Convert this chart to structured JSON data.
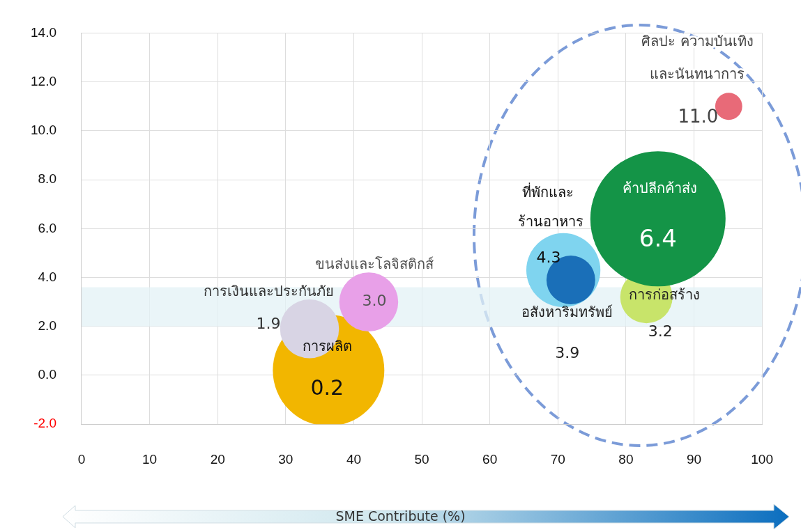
{
  "chart_data": {
    "type": "bubble",
    "xlabel": "SME Contribute (%)",
    "xlim": [
      0,
      100
    ],
    "xticks": [
      0,
      10,
      20,
      30,
      40,
      50,
      60,
      70,
      80,
      90,
      100
    ],
    "ylim": [
      -2,
      14
    ],
    "yticks": [
      {
        "value": -2,
        "label": "-2.0"
      },
      {
        "value": 0,
        "label": "0.0"
      },
      {
        "value": 2,
        "label": "2.0"
      },
      {
        "value": 4,
        "label": "4.0"
      },
      {
        "value": 6,
        "label": "6.0"
      },
      {
        "value": 8,
        "label": "8.0"
      },
      {
        "value": 10,
        "label": "10.0"
      },
      {
        "value": 12,
        "label": "12.0"
      },
      {
        "value": 14,
        "label": "14.0"
      }
    ],
    "grid": true,
    "bands": [
      {
        "axis": "y",
        "from": 2,
        "to": 3.6,
        "color": "#e3f1f5"
      }
    ],
    "series": [
      {
        "name": "การผลิต",
        "color": "#f2b600",
        "x": [
          36.3
        ],
        "values": [
          0.2
        ],
        "sizes": [
          0.68
        ],
        "value_labels": [
          "0.2"
        ]
      },
      {
        "name": "การเงินและประกันภัย",
        "color": "#d8d4e4",
        "x": [
          33.5
        ],
        "values": [
          1.9
        ],
        "sizes": [
          0.19
        ],
        "value_labels": [
          "1.9"
        ]
      },
      {
        "name": "ขนส่งและโลจิสติกส์",
        "color": "#e8a0e8",
        "x": [
          42.2
        ],
        "values": [
          3.0
        ],
        "sizes": [
          0.19
        ],
        "value_labels": [
          "3.0"
        ]
      },
      {
        "name": "ที่พักและร้านอาหาร",
        "color": "#7fd4ef",
        "x": [
          70.8
        ],
        "values": [
          4.3
        ],
        "sizes": [
          0.3
        ],
        "value_labels": [
          "4.3"
        ]
      },
      {
        "name": "อสังหาริมทรัพย์",
        "color": "#1a6fb8",
        "x": [
          71.9
        ],
        "values": [
          3.9
        ],
        "sizes": [
          0.13
        ],
        "value_labels": [
          "3.9"
        ]
      },
      {
        "name": "การก่อสร้าง",
        "color": "#c8e46a",
        "x": [
          83
        ],
        "values": [
          3.2
        ],
        "sizes": [
          0.15
        ],
        "value_labels": [
          "3.2"
        ]
      },
      {
        "name": "ค้าปลีกค้าส่ง",
        "color": "#149447",
        "x": [
          84.7
        ],
        "values": [
          6.4
        ],
        "sizes": [
          1
        ],
        "value_labels": [
          "6.4"
        ]
      },
      {
        "name": "ศิลปะ ความบันเทิงและนันทนาการ",
        "color": "#e86a78",
        "x": [
          95.1
        ],
        "values": [
          11.0
        ],
        "sizes": [
          0.04
        ],
        "value_labels": [
          "11.0"
        ]
      }
    ]
  }
}
